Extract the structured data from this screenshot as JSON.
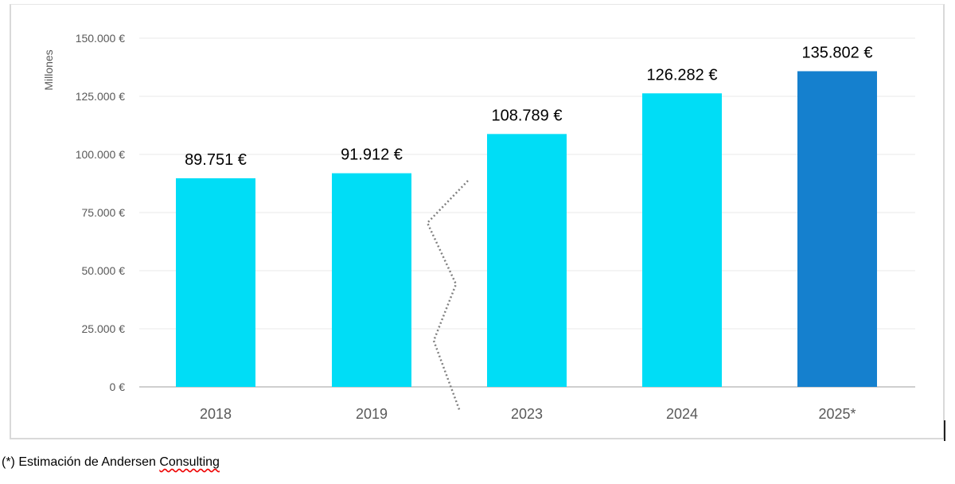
{
  "chart_data": {
    "type": "bar",
    "categories": [
      "2018",
      "2019",
      "2023",
      "2024",
      "2025*"
    ],
    "values": [
      89751,
      91912,
      108789,
      126282,
      135802
    ],
    "data_labels": [
      "89.751 €",
      "91.912 €",
      "108.789 €",
      "126.282 €",
      "135.802 €"
    ],
    "ylabel": "Millones",
    "ylim": [
      0,
      150000
    ],
    "yticks": [
      0,
      25000,
      50000,
      75000,
      100000,
      125000,
      150000
    ],
    "ytick_labels": [
      "0 €",
      "25.000 €",
      "50.000 €",
      "75.000 €",
      "100.000 €",
      "125.000 €",
      "150.000 €"
    ],
    "grid": true,
    "axis_break": "between 2019 and 2023",
    "colors": [
      "#00DDF6",
      "#00DDF6",
      "#00DDF6",
      "#00DDF6",
      "#1580CE"
    ]
  },
  "footnote": {
    "prefix": "(*) Estimación de Andersen ",
    "flagged_word": "Consulting"
  }
}
